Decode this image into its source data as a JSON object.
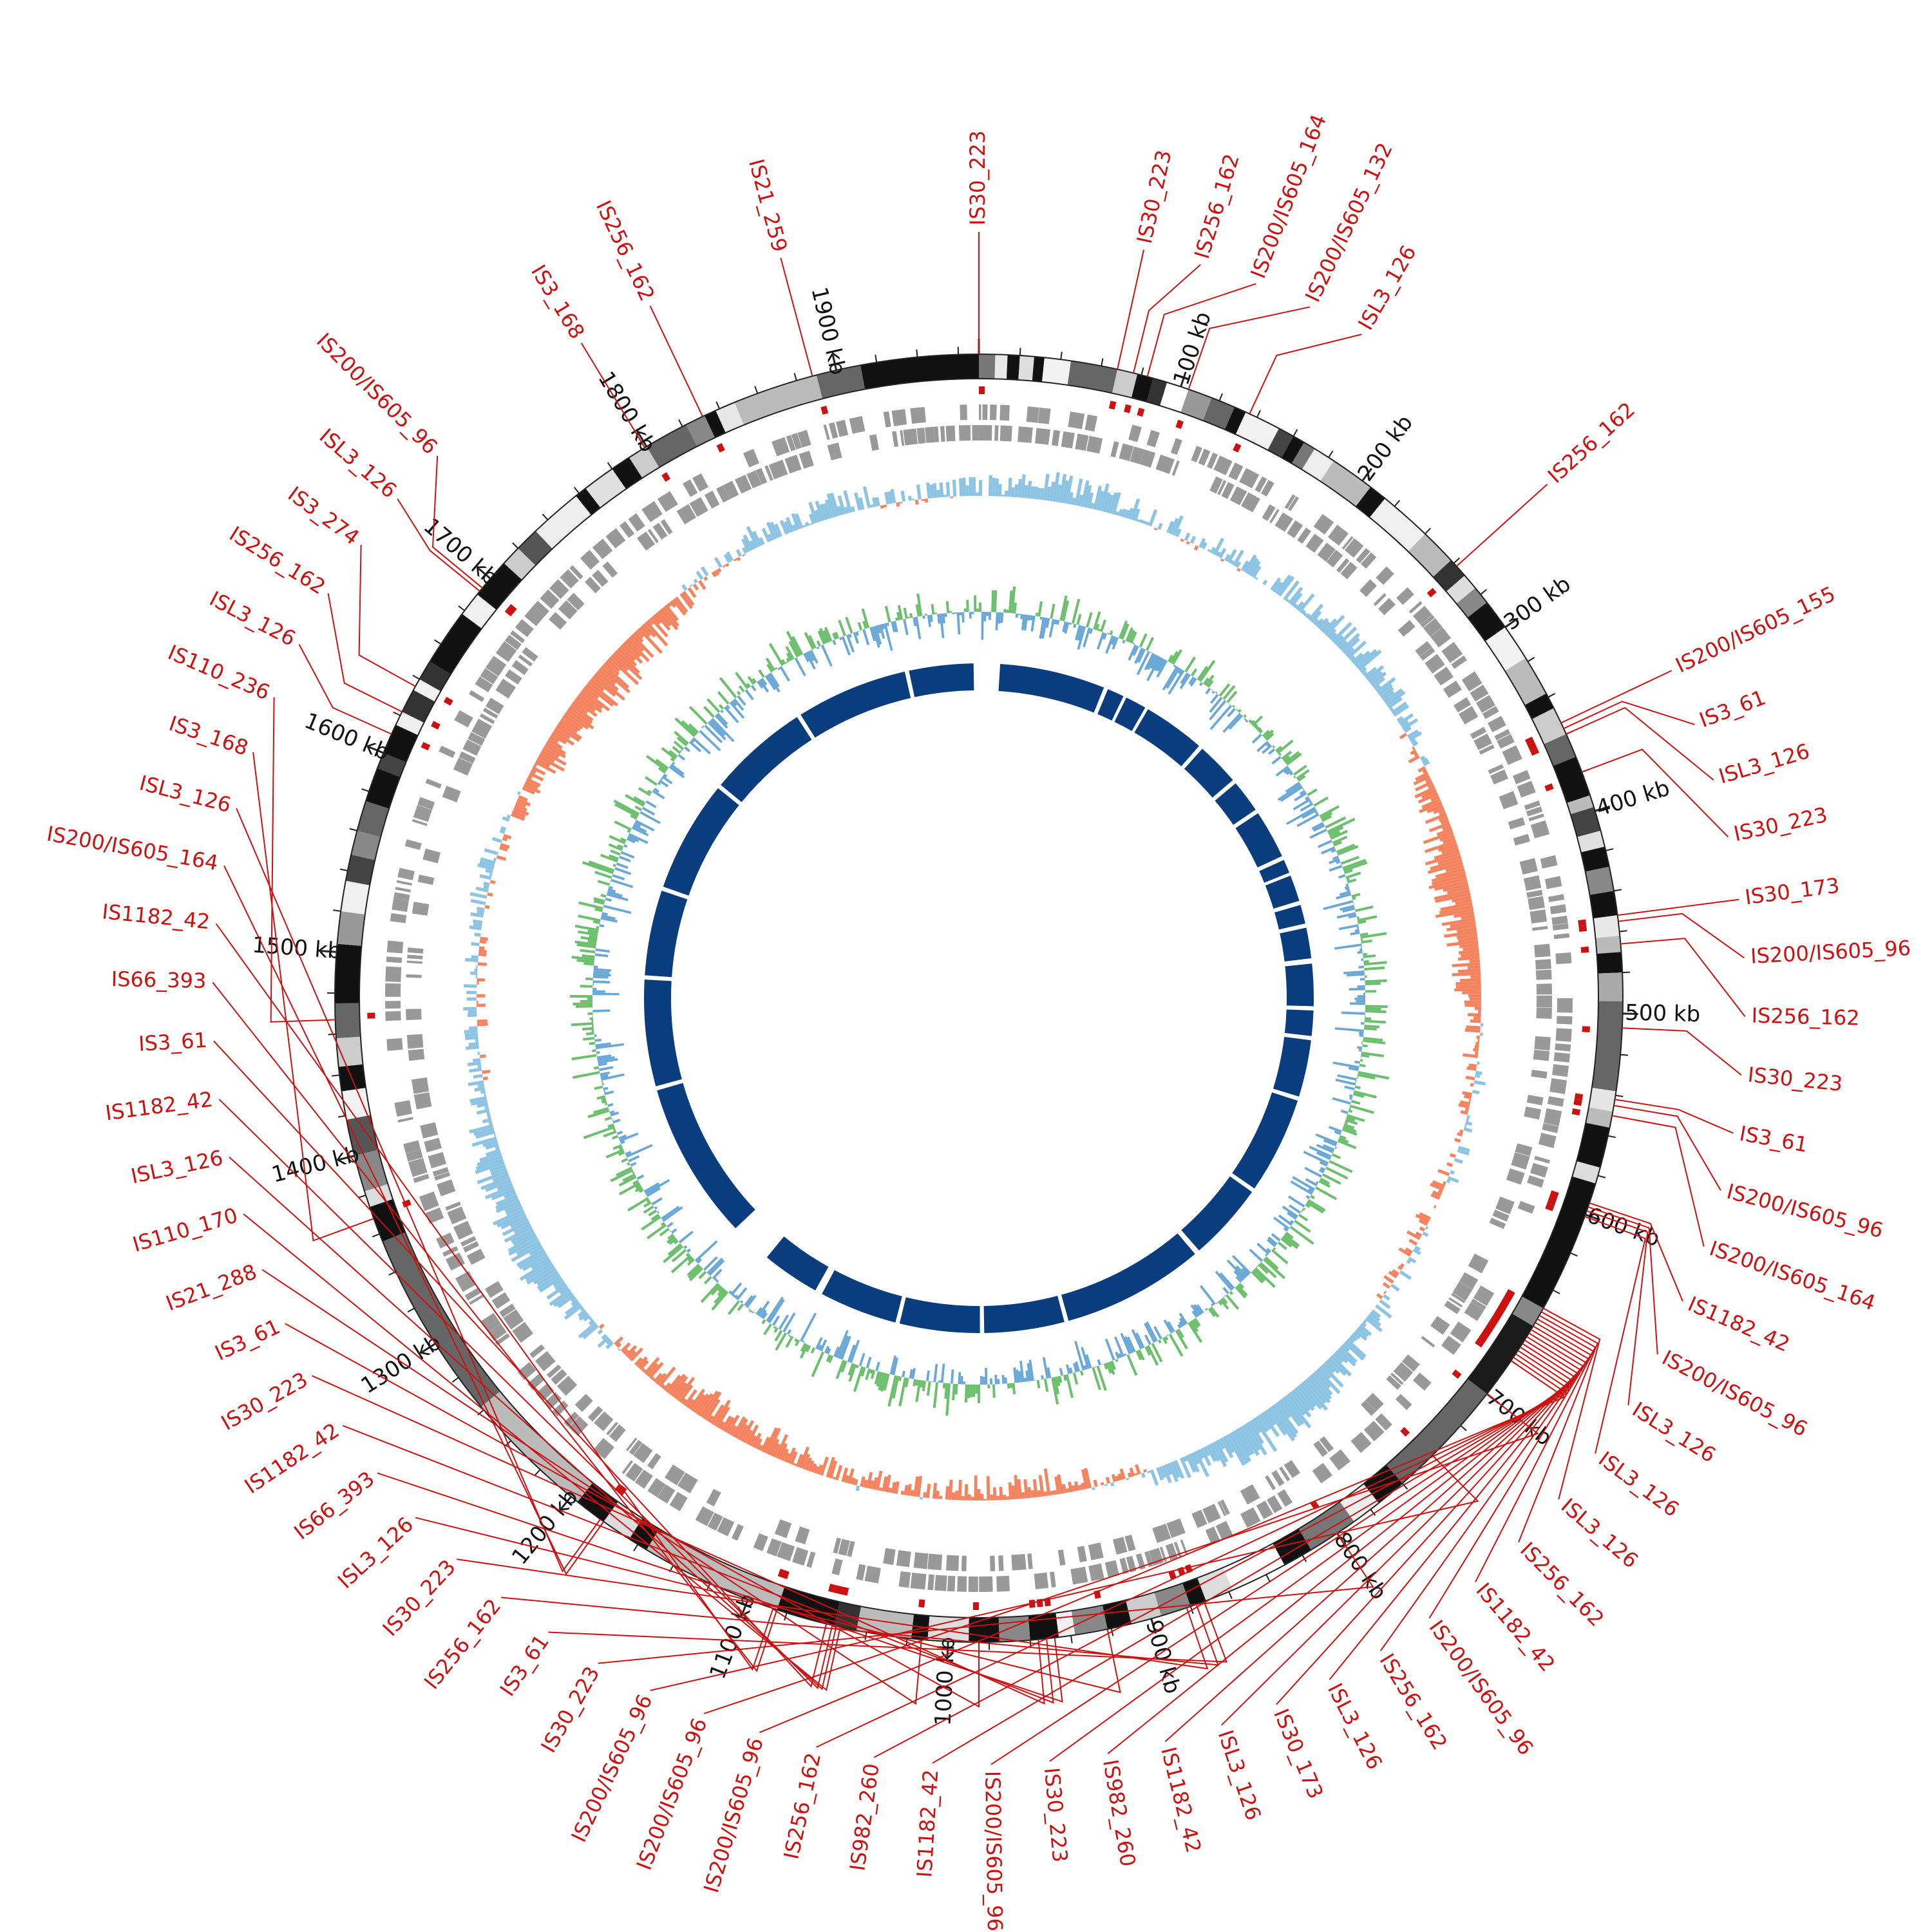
{
  "genome": {
    "length_kb": 1970,
    "scale_labels": [
      "100 kb",
      "200 kb",
      "300 kb",
      "400 kb",
      "500 kb",
      "600 kb",
      "700 kb",
      "800 kb",
      "900 kb",
      "1000 kb",
      "1100 kb",
      "1200 kb",
      "1300 kb",
      "1400 kb",
      "1500 kb",
      "1600 kb",
      "1700 kb",
      "1800 kb",
      "1900 kb"
    ],
    "colors": {
      "is_element": "#cc1111",
      "gc_skew_positive": "#8dc3e3",
      "gc_skew_negative": "#f4845f",
      "gc_content_high": "#6cbf6c",
      "gc_content_low": "#6aa8d8",
      "inner_blocks": "#0a3d7e",
      "genes": "#999999"
    }
  },
  "outer_segments": [
    {
      "start": 0,
      "end": 8,
      "shade": "#777777"
    },
    {
      "start": 8,
      "end": 14,
      "shade": "#e8e8e8"
    },
    {
      "start": 14,
      "end": 20,
      "shade": "#111111"
    },
    {
      "start": 20,
      "end": 27,
      "shade": "#dddddd"
    },
    {
      "start": 27,
      "end": 32,
      "shade": "#111111"
    },
    {
      "start": 32,
      "end": 45,
      "shade": "#f2f2f2"
    },
    {
      "start": 45,
      "end": 68,
      "shade": "#666666"
    },
    {
      "start": 68,
      "end": 78,
      "shade": "#cccccc"
    },
    {
      "start": 78,
      "end": 86,
      "shade": "#111111"
    },
    {
      "start": 86,
      "end": 93,
      "shade": "#333333"
    },
    {
      "start": 93,
      "end": 104,
      "shade": "#ffffff"
    },
    {
      "start": 104,
      "end": 116,
      "shade": "#999999"
    },
    {
      "start": 116,
      "end": 128,
      "shade": "#666666"
    },
    {
      "start": 128,
      "end": 134,
      "shade": "#111111"
    },
    {
      "start": 134,
      "end": 152,
      "shade": "#f2f2f2"
    },
    {
      "start": 152,
      "end": 160,
      "shade": "#444444"
    },
    {
      "start": 160,
      "end": 166,
      "shade": "#111111"
    },
    {
      "start": 166,
      "end": 172,
      "shade": "#777777"
    },
    {
      "start": 172,
      "end": 183,
      "shade": "#eeeeee"
    },
    {
      "start": 183,
      "end": 205,
      "shade": "#bbbbbb"
    },
    {
      "start": 205,
      "end": 214,
      "shade": "#111111"
    },
    {
      "start": 214,
      "end": 240,
      "shade": "#f0f0f0"
    },
    {
      "start": 240,
      "end": 258,
      "shade": "#bbbbbb"
    },
    {
      "start": 258,
      "end": 268,
      "shade": "#333333"
    },
    {
      "start": 268,
      "end": 276,
      "shade": "#dddddd"
    },
    {
      "start": 276,
      "end": 285,
      "shade": "#888888"
    },
    {
      "start": 285,
      "end": 300,
      "shade": "#111111"
    },
    {
      "start": 300,
      "end": 318,
      "shade": "#f2f2f2"
    },
    {
      "start": 318,
      "end": 338,
      "shade": "#bbbbbb"
    },
    {
      "start": 338,
      "end": 346,
      "shade": "#111111"
    },
    {
      "start": 346,
      "end": 360,
      "shade": "#cccccc"
    },
    {
      "start": 360,
      "end": 372,
      "shade": "#666666"
    },
    {
      "start": 372,
      "end": 392,
      "shade": "#111111"
    },
    {
      "start": 392,
      "end": 398,
      "shade": "#bbbbbb"
    },
    {
      "start": 398,
      "end": 410,
      "shade": "#444444"
    },
    {
      "start": 410,
      "end": 418,
      "shade": "#e0e0e0"
    },
    {
      "start": 418,
      "end": 428,
      "shade": "#111111"
    },
    {
      "start": 428,
      "end": 440,
      "shade": "#888888"
    },
    {
      "start": 440,
      "end": 452,
      "shade": "#111111"
    },
    {
      "start": 452,
      "end": 462,
      "shade": "#e8e8e8"
    },
    {
      "start": 462,
      "end": 470,
      "shade": "#bbbbbb"
    },
    {
      "start": 470,
      "end": 480,
      "shade": "#111111"
    },
    {
      "start": 480,
      "end": 494,
      "shade": "#aaaaaa"
    },
    {
      "start": 494,
      "end": 538,
      "shade": "#666666"
    },
    {
      "start": 538,
      "end": 548,
      "shade": "#e6e6e6"
    },
    {
      "start": 548,
      "end": 556,
      "shade": "#bbbbbb"
    },
    {
      "start": 556,
      "end": 576,
      "shade": "#111111"
    },
    {
      "start": 576,
      "end": 584,
      "shade": "#dddddd"
    },
    {
      "start": 584,
      "end": 650,
      "shade": "#111111"
    },
    {
      "start": 650,
      "end": 660,
      "shade": "#888888"
    },
    {
      "start": 660,
      "end": 700,
      "shade": "#1a1a1a"
    },
    {
      "start": 700,
      "end": 760,
      "shade": "#666666"
    },
    {
      "start": 760,
      "end": 775,
      "shade": "#111111"
    },
    {
      "start": 775,
      "end": 790,
      "shade": "#eeeeee"
    },
    {
      "start": 790,
      "end": 815,
      "shade": "#777777"
    },
    {
      "start": 815,
      "end": 830,
      "shade": "#111111"
    },
    {
      "start": 830,
      "end": 858,
      "shade": "#ffffff"
    },
    {
      "start": 858,
      "end": 872,
      "shade": "#dddddd"
    },
    {
      "start": 872,
      "end": 880,
      "shade": "#111111"
    },
    {
      "start": 880,
      "end": 895,
      "shade": "#888888"
    },
    {
      "start": 895,
      "end": 910,
      "shade": "#cccccc"
    },
    {
      "start": 910,
      "end": 922,
      "shade": "#111111"
    },
    {
      "start": 922,
      "end": 938,
      "shade": "#888888"
    },
    {
      "start": 938,
      "end": 946,
      "shade": "#f0f0f0"
    },
    {
      "start": 946,
      "end": 960,
      "shade": "#111111"
    },
    {
      "start": 960,
      "end": 975,
      "shade": "#888888"
    },
    {
      "start": 975,
      "end": 990,
      "shade": "#111111"
    },
    {
      "start": 990,
      "end": 1010,
      "shade": "#dddddd"
    },
    {
      "start": 1010,
      "end": 1018,
      "shade": "#111111"
    },
    {
      "start": 1018,
      "end": 1045,
      "shade": "#bbbbbb"
    },
    {
      "start": 1045,
      "end": 1056,
      "shade": "#333333"
    },
    {
      "start": 1056,
      "end": 1085,
      "shade": "#111111"
    },
    {
      "start": 1085,
      "end": 1155,
      "shade": "#bbbbbb"
    },
    {
      "start": 1155,
      "end": 1165,
      "shade": "#111111"
    },
    {
      "start": 1165,
      "end": 1180,
      "shade": "#dddddd"
    },
    {
      "start": 1180,
      "end": 1196,
      "shade": "#111111"
    },
    {
      "start": 1196,
      "end": 1262,
      "shade": "#bbbbbb"
    },
    {
      "start": 1262,
      "end": 1356,
      "shade": "#666666"
    },
    {
      "start": 1356,
      "end": 1374,
      "shade": "#111111"
    },
    {
      "start": 1374,
      "end": 1382,
      "shade": "#dddddd"
    },
    {
      "start": 1382,
      "end": 1400,
      "shade": "#888888"
    },
    {
      "start": 1400,
      "end": 1418,
      "shade": "#555555"
    },
    {
      "start": 1418,
      "end": 1432,
      "shade": "#f2f2f2"
    },
    {
      "start": 1432,
      "end": 1444,
      "shade": "#111111"
    },
    {
      "start": 1444,
      "end": 1458,
      "shade": "#cccccc"
    },
    {
      "start": 1458,
      "end": 1475,
      "shade": "#666666"
    },
    {
      "start": 1475,
      "end": 1504,
      "shade": "#111111"
    },
    {
      "start": 1504,
      "end": 1520,
      "shade": "#999999"
    },
    {
      "start": 1520,
      "end": 1535,
      "shade": "#f0f0f0"
    },
    {
      "start": 1535,
      "end": 1548,
      "shade": "#444444"
    },
    {
      "start": 1548,
      "end": 1560,
      "shade": "#888888"
    },
    {
      "start": 1560,
      "end": 1575,
      "shade": "#666666"
    },
    {
      "start": 1575,
      "end": 1592,
      "shade": "#111111"
    },
    {
      "start": 1592,
      "end": 1600,
      "shade": "#444444"
    },
    {
      "start": 1600,
      "end": 1615,
      "shade": "#111111"
    },
    {
      "start": 1615,
      "end": 1622,
      "shade": "#eeeeee"
    },
    {
      "start": 1622,
      "end": 1634,
      "shade": "#333333"
    },
    {
      "start": 1634,
      "end": 1640,
      "shade": "#f2f2f2"
    },
    {
      "start": 1640,
      "end": 1650,
      "shade": "#333333"
    },
    {
      "start": 1650,
      "end": 1678,
      "shade": "#111111"
    },
    {
      "start": 1678,
      "end": 1690,
      "shade": "#f0f0f0"
    },
    {
      "start": 1690,
      "end": 1710,
      "shade": "#111111"
    },
    {
      "start": 1710,
      "end": 1720,
      "shade": "#cccccc"
    },
    {
      "start": 1720,
      "end": 1732,
      "shade": "#555555"
    },
    {
      "start": 1732,
      "end": 1758,
      "shade": "#eeeeee"
    },
    {
      "start": 1758,
      "end": 1764,
      "shade": "#111111"
    },
    {
      "start": 1764,
      "end": 1780,
      "shade": "#e0e0e0"
    },
    {
      "start": 1780,
      "end": 1790,
      "shade": "#111111"
    },
    {
      "start": 1790,
      "end": 1800,
      "shade": "#cccccc"
    },
    {
      "start": 1800,
      "end": 1822,
      "shade": "#666666"
    },
    {
      "start": 1822,
      "end": 1832,
      "shade": "#888888"
    },
    {
      "start": 1832,
      "end": 1838,
      "shade": "#111111"
    },
    {
      "start": 1838,
      "end": 1848,
      "shade": "#e8e8e8"
    },
    {
      "start": 1848,
      "end": 1890,
      "shade": "#bbbbbb"
    },
    {
      "start": 1890,
      "end": 1912,
      "shade": "#666666"
    },
    {
      "start": 1912,
      "end": 1970,
      "shade": "#111111"
    }
  ],
  "inner_blocks": [
    {
      "start": 20,
      "end": 120
    },
    {
      "start": 124,
      "end": 140
    },
    {
      "start": 143,
      "end": 163
    },
    {
      "start": 166,
      "end": 225
    },
    {
      "start": 229,
      "end": 270
    },
    {
      "start": 274,
      "end": 305
    },
    {
      "start": 309,
      "end": 355
    },
    {
      "start": 359,
      "end": 372
    },
    {
      "start": 375,
      "end": 400
    },
    {
      "start": 404,
      "end": 422
    },
    {
      "start": 426,
      "end": 455
    },
    {
      "start": 460,
      "end": 500
    },
    {
      "start": 504,
      "end": 528
    },
    {
      "start": 532,
      "end": 586
    },
    {
      "start": 590,
      "end": 682
    },
    {
      "start": 686,
      "end": 760
    },
    {
      "start": 765,
      "end": 900
    },
    {
      "start": 904,
      "end": 980
    },
    {
      "start": 984,
      "end": 1060
    },
    {
      "start": 1064,
      "end": 1138
    },
    {
      "start": 1145,
      "end": 1200
    },
    {
      "start": 1240,
      "end": 1390
    },
    {
      "start": 1394,
      "end": 1495
    },
    {
      "start": 1499,
      "end": 1580
    },
    {
      "start": 1584,
      "end": 1690
    },
    {
      "start": 1694,
      "end": 1790
    },
    {
      "start": 1794,
      "end": 1900
    },
    {
      "start": 1904,
      "end": 1965
    }
  ],
  "is_elements": [
    {
      "label": "IS30_223",
      "pos": 0
    },
    {
      "label": "IS30_223",
      "pos": 68
    },
    {
      "label": "IS256_162",
      "pos": 76
    },
    {
      "label": "IS200/IS605_164",
      "pos": 83
    },
    {
      "label": "IS200/IS605_132",
      "pos": 104
    },
    {
      "label": "ISL3_126",
      "pos": 136
    },
    {
      "label": "IS256_162",
      "pos": 262
    },
    {
      "label": "IS200/IS605_155",
      "pos": 354
    },
    {
      "label": "IS3_61",
      "pos": 357
    },
    {
      "label": "ISL3_126",
      "pos": 360
    },
    {
      "label": "IS30_223",
      "pos": 380
    },
    {
      "label": "IS30_173",
      "pos": 452
    },
    {
      "label": "IS200/IS605_96",
      "pos": 455
    },
    {
      "label": "IS256_162",
      "pos": 466
    },
    {
      "label": "IS30_223",
      "pos": 507
    },
    {
      "label": "IS3_61",
      "pos": 542
    },
    {
      "label": "IS200/IS605_96",
      "pos": 545
    },
    {
      "label": "IS200/IS605_164",
      "pos": 550
    },
    {
      "label": "IS1182_42",
      "pos": 594
    },
    {
      "label": "IS200/IS605_96",
      "pos": 596
    },
    {
      "label": "ISL3_126",
      "pos": 598
    },
    {
      "label": "ISL3_126",
      "pos": 601
    },
    {
      "label": "ISL3_126",
      "pos": 650
    },
    {
      "label": "IS256_162",
      "pos": 652
    },
    {
      "label": "IS1182_42",
      "pos": 654
    },
    {
      "label": "IS200/IS605_96",
      "pos": 656
    },
    {
      "label": "IS256_162",
      "pos": 658
    },
    {
      "label": "ISL3_126",
      "pos": 660
    },
    {
      "label": "IS30_173",
      "pos": 662
    },
    {
      "label": "ISL3_126",
      "pos": 664
    },
    {
      "label": "IS1182_42",
      "pos": 666
    },
    {
      "label": "IS982_260",
      "pos": 668
    },
    {
      "label": "IS30_223",
      "pos": 670
    },
    {
      "label": "IS200/IS605_96",
      "pos": 672
    },
    {
      "label": "IS1182_42",
      "pos": 674
    },
    {
      "label": "IS982_260",
      "pos": 676
    },
    {
      "label": "IS256_162",
      "pos": 678
    },
    {
      "label": "IS200/IS605_96",
      "pos": 680
    },
    {
      "label": "IS200/IS605_96",
      "pos": 700
    },
    {
      "label": "IS200/IS605_96",
      "pos": 740
    },
    {
      "label": "IS30_223",
      "pos": 800
    },
    {
      "label": "IS3_61",
      "pos": 873
    },
    {
      "label": "IS256_162",
      "pos": 877
    },
    {
      "label": "IS30_223",
      "pos": 882
    },
    {
      "label": "ISL3_126",
      "pos": 922
    },
    {
      "label": "IS66_393",
      "pos": 948
    },
    {
      "label": "IS1182_42",
      "pos": 952
    },
    {
      "label": "IS30_223",
      "pos": 956
    },
    {
      "label": "IS3_61",
      "pos": 985
    },
    {
      "label": "IS21_288",
      "pos": 1013
    },
    {
      "label": "IS110_170",
      "pos": 1053
    },
    {
      "label": "ISL3_126",
      "pos": 1055
    },
    {
      "label": "IS1182_42",
      "pos": 1057
    },
    {
      "label": "IS3_61",
      "pos": 1060
    },
    {
      "label": "IS66_393",
      "pos": 1085
    },
    {
      "label": "IS1182_42",
      "pos": 1087
    },
    {
      "label": "IS200/IS605_164",
      "pos": 1180
    },
    {
      "label": "ISL3_126",
      "pos": 1182
    },
    {
      "label": "IS3_168",
      "pos": 1368
    },
    {
      "label": "IS110_236",
      "pos": 1467
    },
    {
      "label": "ISL3_126",
      "pos": 1610
    },
    {
      "label": "IS256_162",
      "pos": 1622
    },
    {
      "label": "IS3_274",
      "pos": 1636
    },
    {
      "label": "ISL3_126",
      "pos": 1692
    },
    {
      "label": "IS200/IS605_96",
      "pos": 1694
    },
    {
      "label": "IS3_168",
      "pos": 1799
    },
    {
      "label": "IS256_162",
      "pos": 1831
    },
    {
      "label": "IS21_259",
      "pos": 1888
    }
  ]
}
